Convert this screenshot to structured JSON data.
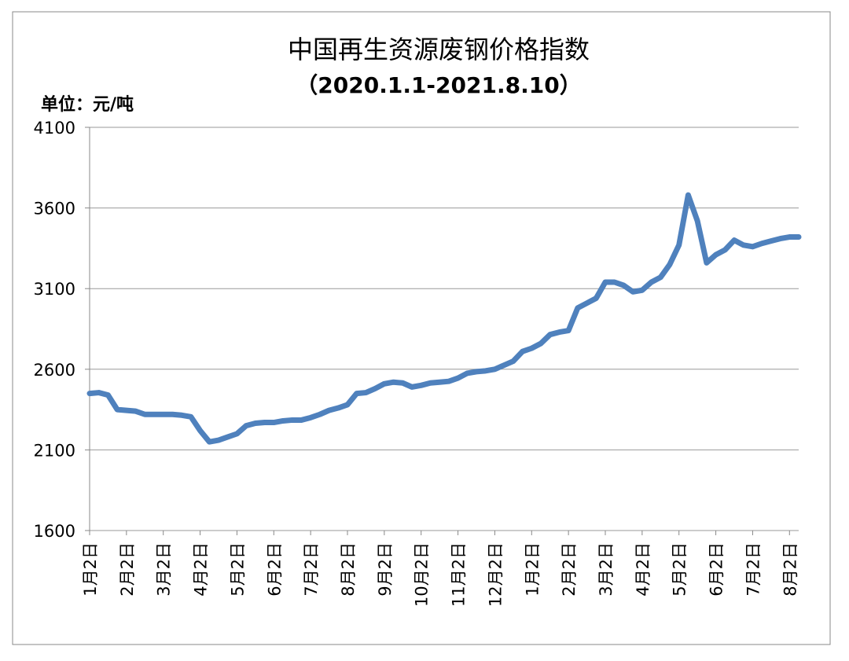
{
  "chart_data": {
    "type": "line",
    "title": "中国再生资源废钢价格指数",
    "subtitle": "（2020.1.1-2021.8.10）",
    "y_label": "单位：元/吨",
    "categories": [
      "1月2日",
      null,
      null,
      null,
      "2月2日",
      null,
      null,
      null,
      "3月2日",
      null,
      null,
      null,
      "4月2日",
      null,
      null,
      null,
      "5月2日",
      null,
      null,
      null,
      "6月2日",
      null,
      null,
      null,
      "7月2日",
      null,
      null,
      null,
      "8月2日",
      null,
      null,
      null,
      "9月2日",
      null,
      null,
      null,
      "10月2日",
      null,
      null,
      null,
      "11月2日",
      null,
      null,
      null,
      "12月2日",
      null,
      null,
      null,
      "1月2日",
      null,
      null,
      null,
      "2月2日",
      null,
      null,
      null,
      "3月2日",
      null,
      null,
      null,
      "4月2日",
      null,
      null,
      null,
      "5月2日",
      null,
      null,
      null,
      "6月2日",
      null,
      null,
      null,
      "7月2日",
      null,
      null,
      null,
      "8月2日",
      null
    ],
    "series": [
      {
        "color": "#4f81bd",
        "values": [
          2450,
          2455,
          2440,
          2350,
          2345,
          2340,
          2320,
          2320,
          2320,
          2320,
          2315,
          2305,
          2220,
          2150,
          2160,
          2180,
          2200,
          2250,
          2265,
          2270,
          2270,
          2280,
          2285,
          2285,
          2300,
          2320,
          2345,
          2360,
          2380,
          2450,
          2455,
          2480,
          2510,
          2520,
          2515,
          2490,
          2500,
          2515,
          2520,
          2525,
          2545,
          2575,
          2585,
          2590,
          2600,
          2625,
          2650,
          2710,
          2730,
          2760,
          2815,
          2830,
          2840,
          2980,
          3010,
          3040,
          3140,
          3140,
          3120,
          3080,
          3090,
          3140,
          3170,
          3250,
          3370,
          3680,
          3520,
          3260,
          3310,
          3340,
          3400,
          3370,
          3360,
          3380,
          3395,
          3410,
          3420,
          3420
        ]
      }
    ],
    "ylim": [
      1600,
      4100
    ],
    "yticks": [
      1600,
      2100,
      2600,
      3100,
      3600,
      4100
    ],
    "grid": true
  }
}
